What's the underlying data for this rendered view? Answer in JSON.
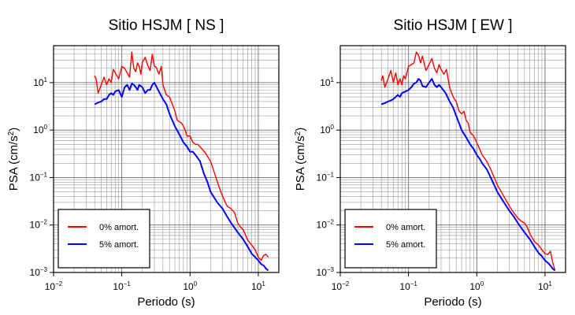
{
  "chart_data": [
    {
      "type": "line",
      "title": "Sitio HSJM [ NS ]",
      "xlabel": "Periodo (s)",
      "ylabel_main": "PSA (cm/s",
      "ylabel_sup": "2",
      "ylabel_end": ")",
      "xscale": "log",
      "yscale": "log",
      "xlim": [
        0.01,
        20
      ],
      "ylim": [
        0.001,
        60
      ],
      "grid": true,
      "legend_position": "bottom-left",
      "x_ticks": [
        {
          "base": "10",
          "exp": "−2"
        },
        {
          "base": "10",
          "exp": "−1"
        },
        {
          "base": "10",
          "exp": "0"
        },
        {
          "base": "10",
          "exp": "1"
        }
      ],
      "y_ticks": [
        {
          "base": "10",
          "exp": "−3"
        },
        {
          "base": "10",
          "exp": "−2"
        },
        {
          "base": "10",
          "exp": "−1"
        },
        {
          "base": "10",
          "exp": "0"
        },
        {
          "base": "10",
          "exp": "1"
        }
      ],
      "series": [
        {
          "name": "0% amort.",
          "color": "#ff0000",
          "x": [
            0.04,
            0.042,
            0.045,
            0.05,
            0.055,
            0.06,
            0.065,
            0.07,
            0.075,
            0.08,
            0.09,
            0.1,
            0.11,
            0.12,
            0.13,
            0.14,
            0.15,
            0.16,
            0.17,
            0.18,
            0.19,
            0.2,
            0.22,
            0.24,
            0.26,
            0.28,
            0.3,
            0.32,
            0.35,
            0.38,
            0.4,
            0.45,
            0.5,
            0.55,
            0.6,
            0.65,
            0.7,
            0.75,
            0.8,
            0.85,
            0.9,
            1.0,
            1.1,
            1.2,
            1.3,
            1.5,
            1.7,
            2.0,
            2.3,
            2.6,
            3.0,
            3.5,
            4.0,
            4.5,
            5.0,
            5.5,
            6,
            7,
            8,
            9,
            10,
            11,
            12,
            13,
            14
          ],
          "y": [
            14,
            12,
            6,
            9,
            13,
            9,
            12,
            10,
            19,
            16,
            12,
            22,
            20,
            16,
            13,
            44,
            20,
            17,
            26,
            22,
            15,
            27,
            34,
            23,
            18,
            40,
            22,
            21,
            15,
            22,
            9,
            5.5,
            5,
            3.5,
            2.5,
            1.6,
            1.5,
            1.4,
            1.2,
            1.0,
            0.75,
            0.75,
            0.55,
            0.5,
            0.5,
            0.4,
            0.32,
            0.22,
            0.12,
            0.07,
            0.04,
            0.025,
            0.022,
            0.018,
            0.011,
            0.009,
            0.008,
            0.0048,
            0.0038,
            0.003,
            0.0021,
            0.0018,
            0.0023,
            0.0024,
            0.0021
          ]
        },
        {
          "name": "5% amort.",
          "color": "#0000ff",
          "x": [
            0.04,
            0.045,
            0.05,
            0.055,
            0.06,
            0.065,
            0.07,
            0.075,
            0.08,
            0.09,
            0.1,
            0.11,
            0.12,
            0.13,
            0.14,
            0.15,
            0.16,
            0.17,
            0.18,
            0.2,
            0.22,
            0.24,
            0.26,
            0.28,
            0.3,
            0.35,
            0.4,
            0.45,
            0.5,
            0.55,
            0.6,
            0.7,
            0.8,
            0.9,
            1.0,
            1.1,
            1.2,
            1.4,
            1.6,
            1.8,
            2.0,
            2.5,
            3.0,
            3.5,
            4.0,
            5.0,
            6.0,
            7.0,
            8.0,
            9.0,
            10,
            11,
            12,
            13,
            14
          ],
          "y": [
            3.5,
            3.8,
            4,
            4.5,
            4.5,
            5.5,
            6,
            5.5,
            6.5,
            7,
            5,
            8,
            9,
            7,
            9.5,
            9,
            8,
            7,
            9,
            8,
            6,
            7,
            7,
            9,
            10,
            6.5,
            4.5,
            3.5,
            2.2,
            1.6,
            1.2,
            0.8,
            0.55,
            0.45,
            0.35,
            0.35,
            0.3,
            0.22,
            0.12,
            0.08,
            0.05,
            0.03,
            0.022,
            0.015,
            0.011,
            0.007,
            0.005,
            0.0035,
            0.0025,
            0.0021,
            0.0018,
            0.0015,
            0.0014,
            0.0012,
            0.0011
          ]
        }
      ]
    },
    {
      "type": "line",
      "title": "Sitio HSJM [ EW ]",
      "xlabel": "Periodo (s)",
      "ylabel_main": "PSA (cm/s",
      "ylabel_sup": "2",
      "ylabel_end": ")",
      "xscale": "log",
      "yscale": "log",
      "xlim": [
        0.01,
        20
      ],
      "ylim": [
        0.001,
        60
      ],
      "grid": true,
      "legend_position": "bottom-left",
      "x_ticks": [
        {
          "base": "10",
          "exp": "−2"
        },
        {
          "base": "10",
          "exp": "−1"
        },
        {
          "base": "10",
          "exp": "0"
        },
        {
          "base": "10",
          "exp": "1"
        }
      ],
      "y_ticks": [
        {
          "base": "10",
          "exp": "−3"
        },
        {
          "base": "10",
          "exp": "−2"
        },
        {
          "base": "10",
          "exp": "−1"
        },
        {
          "base": "10",
          "exp": "0"
        },
        {
          "base": "10",
          "exp": "1"
        }
      ],
      "series": [
        {
          "name": "0% amort.",
          "color": "#ff0000",
          "x": [
            0.04,
            0.042,
            0.045,
            0.05,
            0.055,
            0.06,
            0.065,
            0.07,
            0.075,
            0.08,
            0.085,
            0.09,
            0.1,
            0.11,
            0.12,
            0.13,
            0.14,
            0.15,
            0.16,
            0.18,
            0.2,
            0.22,
            0.24,
            0.26,
            0.28,
            0.3,
            0.33,
            0.36,
            0.4,
            0.45,
            0.5,
            0.55,
            0.6,
            0.65,
            0.7,
            0.75,
            0.8,
            0.9,
            1.0,
            1.1,
            1.2,
            1.4,
            1.6,
            2.0,
            2.5,
            3.0,
            3.5,
            4.0,
            4.5,
            5.0,
            5.5,
            6.0,
            7.0,
            8.0,
            9.0,
            10,
            11,
            12,
            13,
            14
          ],
          "y": [
            11,
            14,
            8,
            12,
            18,
            10,
            16,
            9,
            12,
            9,
            14,
            12,
            22,
            24,
            26,
            44,
            38,
            26,
            36,
            18,
            24,
            32,
            20,
            16,
            24,
            19,
            15,
            19,
            8,
            5,
            4,
            2.5,
            2.2,
            2.5,
            1.6,
            1.4,
            0.9,
            0.75,
            0.55,
            0.4,
            0.3,
            0.22,
            0.15,
            0.07,
            0.04,
            0.025,
            0.018,
            0.014,
            0.012,
            0.011,
            0.009,
            0.0065,
            0.0045,
            0.0038,
            0.003,
            0.0025,
            0.0024,
            0.0028,
            0.0016,
            0.0011
          ]
        },
        {
          "name": "5% amort.",
          "color": "#0000ff",
          "x": [
            0.04,
            0.045,
            0.05,
            0.055,
            0.06,
            0.065,
            0.07,
            0.075,
            0.08,
            0.09,
            0.1,
            0.11,
            0.12,
            0.13,
            0.14,
            0.15,
            0.16,
            0.18,
            0.2,
            0.22,
            0.24,
            0.26,
            0.28,
            0.3,
            0.35,
            0.4,
            0.45,
            0.5,
            0.55,
            0.6,
            0.7,
            0.8,
            0.9,
            1.0,
            1.1,
            1.2,
            1.4,
            1.6,
            1.8,
            2.0,
            2.5,
            3.0,
            3.5,
            4.0,
            5.0,
            6.0,
            7.0,
            8.0,
            9.0,
            10,
            11,
            12,
            13,
            14
          ],
          "y": [
            3.5,
            3.7,
            4,
            4.2,
            4.5,
            5,
            5.5,
            5,
            6,
            6.5,
            7,
            8,
            9.5,
            10,
            12,
            11,
            8.5,
            8,
            10,
            12,
            9,
            8,
            9,
            8,
            6,
            4,
            3,
            2,
            1.4,
            1.0,
            0.7,
            0.5,
            0.4,
            0.3,
            0.25,
            0.2,
            0.15,
            0.1,
            0.07,
            0.05,
            0.03,
            0.02,
            0.015,
            0.011,
            0.007,
            0.005,
            0.0035,
            0.0026,
            0.0022,
            0.0018,
            0.0016,
            0.0014,
            0.0012,
            0.0011
          ]
        }
      ]
    }
  ]
}
